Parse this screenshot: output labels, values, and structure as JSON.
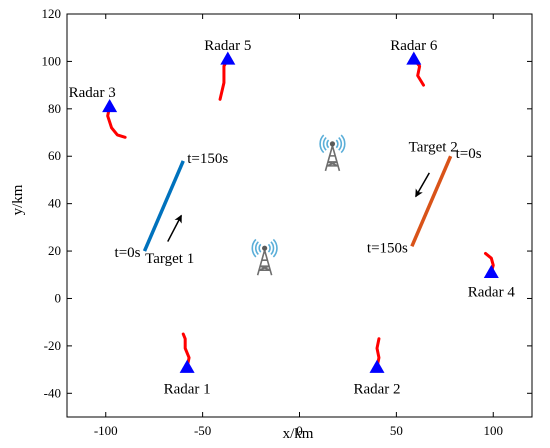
{
  "chart_data": {
    "type": "scatter",
    "xlabel": "x/km",
    "ylabel": "y/km",
    "xlim": [
      -120,
      120
    ],
    "ylim": [
      -50,
      120
    ],
    "xticks": [
      -100,
      -50,
      0,
      50,
      100
    ],
    "yticks": [
      -40,
      -20,
      0,
      20,
      40,
      60,
      80,
      100,
      120
    ],
    "grid": false,
    "colors": {
      "target1": "#0072BD",
      "target2": "#D95319",
      "radar_marker": "#0000FF",
      "radar_track": "#FF0000",
      "arrow": "#000000"
    },
    "targets": [
      {
        "label": "Target 1",
        "start": [
          -80,
          20
        ],
        "end": [
          -60,
          58
        ],
        "start_label": "t=0s",
        "end_label": "t=150s",
        "label_pos": [
          -67,
          15
        ],
        "arrow": [
          [
            -68,
            24
          ],
          [
            -61,
            35
          ]
        ]
      },
      {
        "label": "Target 2",
        "start": [
          78,
          60
        ],
        "end": [
          58,
          22
        ],
        "start_label": "t=0s",
        "end_label": "t=150s",
        "label_pos": [
          69,
          62
        ],
        "arrow": [
          [
            67,
            53
          ],
          [
            60,
            43
          ]
        ]
      }
    ],
    "radars": [
      {
        "label": "Radar 1",
        "pos": [
          -58,
          -29
        ],
        "label_pos": [
          -58,
          -38
        ],
        "track": [
          [
            -58,
            -29
          ],
          [
            -57,
            -25
          ],
          [
            -59,
            -21
          ],
          [
            -59,
            -17
          ],
          [
            -60,
            -15
          ]
        ]
      },
      {
        "label": "Radar 2",
        "pos": [
          40,
          -29
        ],
        "label_pos": [
          40,
          -38
        ],
        "track": [
          [
            40,
            -29
          ],
          [
            41,
            -25
          ],
          [
            40,
            -21
          ],
          [
            41,
            -17
          ]
        ]
      },
      {
        "label": "Radar 3",
        "pos": [
          -98,
          81
        ],
        "label_pos": [
          -107,
          87
        ],
        "track": [
          [
            -98,
            81
          ],
          [
            -99,
            77
          ],
          [
            -97,
            72
          ],
          [
            -94,
            69
          ],
          [
            -90,
            68
          ]
        ]
      },
      {
        "label": "Radar 4",
        "pos": [
          99,
          11
        ],
        "label_pos": [
          99,
          3
        ],
        "track": [
          [
            99,
            11
          ],
          [
            100,
            14
          ],
          [
            99,
            17
          ],
          [
            96,
            19
          ]
        ]
      },
      {
        "label": "Radar 5",
        "pos": [
          -37,
          101
        ],
        "label_pos": [
          -37,
          107
        ],
        "track": [
          [
            -37,
            101
          ],
          [
            -39,
            98
          ],
          [
            -39,
            91
          ],
          [
            -41,
            84
          ]
        ]
      },
      {
        "label": "Radar 6",
        "pos": [
          59,
          101
        ],
        "label_pos": [
          59,
          107
        ],
        "track": [
          [
            59,
            101
          ],
          [
            62,
            98
          ],
          [
            61,
            94
          ],
          [
            64,
            90
          ]
        ]
      }
    ],
    "towers": [
      {
        "name": "tower-icon",
        "pos": [
          17,
          61
        ]
      },
      {
        "name": "tower-icon",
        "pos": [
          -18,
          17
        ]
      }
    ]
  }
}
